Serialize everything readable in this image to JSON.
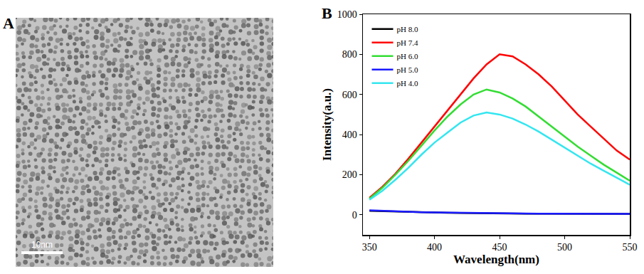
{
  "panel_labels": [
    "A",
    "B"
  ],
  "image": {
    "scale_bar": "10nm"
  },
  "chart_data": {
    "type": "line",
    "xlabel": "Wavelength(nm)",
    "ylabel": "Intensity(a.u.)",
    "x": [
      350,
      360,
      370,
      380,
      390,
      400,
      410,
      420,
      430,
      440,
      450,
      460,
      470,
      480,
      490,
      500,
      510,
      520,
      530,
      540,
      550
    ],
    "series": [
      {
        "name": "pH 8.0",
        "color": "#000000",
        "values": [
          20,
          18,
          16,
          14,
          12,
          11,
          10,
          9,
          8,
          8,
          7,
          7,
          6,
          6,
          6,
          5,
          5,
          5,
          5,
          5,
          5
        ]
      },
      {
        "name": "pH 7.4",
        "color": "#ff0000",
        "values": [
          85,
          140,
          205,
          280,
          360,
          440,
          520,
          600,
          680,
          750,
          800,
          790,
          750,
          700,
          640,
          570,
          500,
          440,
          380,
          320,
          275
        ]
      },
      {
        "name": "pH 6.0",
        "color": "#33dd33",
        "values": [
          80,
          135,
          200,
          270,
          345,
          420,
          490,
          550,
          600,
          625,
          610,
          580,
          540,
          490,
          440,
          390,
          340,
          295,
          250,
          210,
          170
        ]
      },
      {
        "name": "pH 5.0",
        "color": "#1a1aff",
        "values": [
          22,
          19,
          17,
          15,
          13,
          12,
          11,
          10,
          9,
          8,
          8,
          7,
          7,
          6,
          6,
          6,
          5,
          5,
          5,
          5,
          5
        ]
      },
      {
        "name": "pH 4.0",
        "color": "#33e6f0",
        "values": [
          75,
          120,
          175,
          235,
          300,
          360,
          410,
          460,
          495,
          510,
          500,
          480,
          450,
          415,
          375,
          335,
          295,
          255,
          220,
          185,
          150
        ]
      }
    ],
    "xlim": [
      345,
      550
    ],
    "ylim": [
      -100,
      1000
    ],
    "xticks": [
      350,
      400,
      450,
      500,
      550
    ],
    "yticks": [
      0,
      200,
      400,
      600,
      800,
      1000
    ],
    "legend": "upper left",
    "grid": false
  }
}
